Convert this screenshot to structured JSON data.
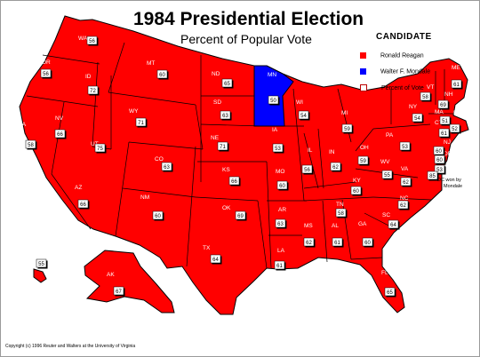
{
  "title": "1984 Presidential Election",
  "subtitle": "Percent of Popular Vote",
  "legend": {
    "heading": "CANDIDATE",
    "reagan": "Ronald Reagan",
    "mondale": "Walter F. Mondale",
    "percent": "Percent of Vote"
  },
  "colors": {
    "reagan": "#ff0000",
    "mondale": "#0000ff",
    "border": "#000000"
  },
  "dc_note": "DC won by Mondale",
  "copyright": "Copyright (c) 1996 Reuter and Walters at the University of Virginia",
  "states": [
    {
      "abbr": "WA",
      "pct": "56",
      "winner": "reagan"
    },
    {
      "abbr": "OR",
      "pct": "56",
      "winner": "reagan"
    },
    {
      "abbr": "CA",
      "pct": "58",
      "winner": "reagan"
    },
    {
      "abbr": "ID",
      "pct": "72",
      "winner": "reagan"
    },
    {
      "abbr": "NV",
      "pct": "66",
      "winner": "reagan"
    },
    {
      "abbr": "MT",
      "pct": "60",
      "winner": "reagan"
    },
    {
      "abbr": "WY",
      "pct": "71",
      "winner": "reagan"
    },
    {
      "abbr": "UT",
      "pct": "75",
      "winner": "reagan"
    },
    {
      "abbr": "AZ",
      "pct": "66",
      "winner": "reagan"
    },
    {
      "abbr": "CO",
      "pct": "63",
      "winner": "reagan"
    },
    {
      "abbr": "NM",
      "pct": "60",
      "winner": "reagan"
    },
    {
      "abbr": "ND",
      "pct": "65",
      "winner": "reagan"
    },
    {
      "abbr": "SD",
      "pct": "63",
      "winner": "reagan"
    },
    {
      "abbr": "NE",
      "pct": "71",
      "winner": "reagan"
    },
    {
      "abbr": "KS",
      "pct": "66",
      "winner": "reagan"
    },
    {
      "abbr": "OK",
      "pct": "69",
      "winner": "reagan"
    },
    {
      "abbr": "TX",
      "pct": "64",
      "winner": "reagan"
    },
    {
      "abbr": "MN",
      "pct": "50",
      "winner": "mondale"
    },
    {
      "abbr": "IA",
      "pct": "53",
      "winner": "reagan"
    },
    {
      "abbr": "MO",
      "pct": "60",
      "winner": "reagan"
    },
    {
      "abbr": "AR",
      "pct": "63",
      "winner": "reagan"
    },
    {
      "abbr": "LA",
      "pct": "61",
      "winner": "reagan"
    },
    {
      "abbr": "WI",
      "pct": "54",
      "winner": "reagan"
    },
    {
      "abbr": "IL",
      "pct": "56",
      "winner": "reagan"
    },
    {
      "abbr": "MI",
      "pct": "59",
      "winner": "reagan"
    },
    {
      "abbr": "IN",
      "pct": "62",
      "winner": "reagan"
    },
    {
      "abbr": "OH",
      "pct": "59",
      "winner": "reagan"
    },
    {
      "abbr": "KY",
      "pct": "60",
      "winner": "reagan"
    },
    {
      "abbr": "TN",
      "pct": "58",
      "winner": "reagan"
    },
    {
      "abbr": "MS",
      "pct": "62",
      "winner": "reagan"
    },
    {
      "abbr": "AL",
      "pct": "61",
      "winner": "reagan"
    },
    {
      "abbr": "GA",
      "pct": "60",
      "winner": "reagan"
    },
    {
      "abbr": "FL",
      "pct": "65",
      "winner": "reagan"
    },
    {
      "abbr": "SC",
      "pct": "64",
      "winner": "reagan"
    },
    {
      "abbr": "NC",
      "pct": "62",
      "winner": "reagan"
    },
    {
      "abbr": "VA",
      "pct": "62",
      "winner": "reagan"
    },
    {
      "abbr": "WV",
      "pct": "55",
      "winner": "reagan"
    },
    {
      "abbr": "PA",
      "pct": "53",
      "winner": "reagan"
    },
    {
      "abbr": "NY",
      "pct": "54",
      "winner": "reagan"
    },
    {
      "abbr": "VT",
      "pct": "58",
      "winner": "reagan"
    },
    {
      "abbr": "NH",
      "pct": "69",
      "winner": "reagan"
    },
    {
      "abbr": "ME",
      "pct": "61",
      "winner": "reagan"
    },
    {
      "abbr": "MA",
      "pct": "51",
      "winner": "reagan"
    },
    {
      "abbr": "RI",
      "pct": "52",
      "winner": "reagan"
    },
    {
      "abbr": "CT",
      "pct": "61",
      "winner": "reagan"
    },
    {
      "abbr": "NJ",
      "pct": "60",
      "winner": "reagan"
    },
    {
      "abbr": "DE",
      "pct": "60",
      "winner": "reagan"
    },
    {
      "abbr": "MD",
      "pct": "53",
      "winner": "reagan"
    },
    {
      "abbr": "DC",
      "pct": "85",
      "winner": "mondale"
    },
    {
      "abbr": "AK",
      "pct": "67",
      "winner": "reagan"
    },
    {
      "abbr": "HI",
      "pct": "55",
      "winner": "reagan"
    }
  ]
}
